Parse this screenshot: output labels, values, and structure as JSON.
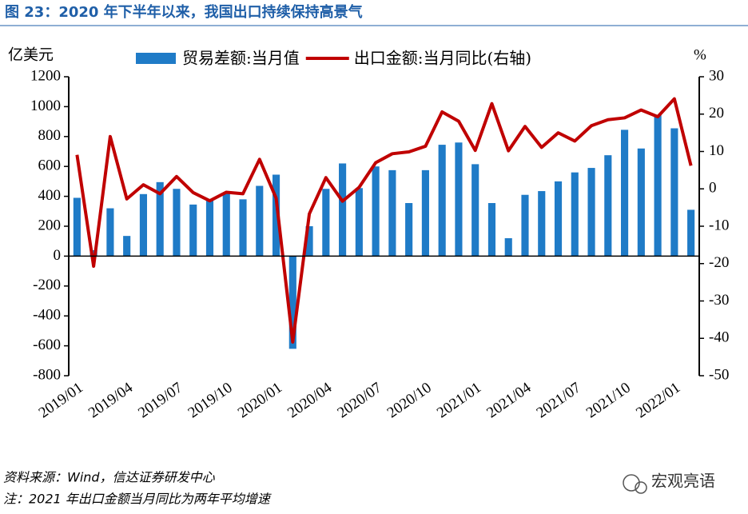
{
  "chart_data": {
    "type": "combo",
    "title": "图 23：2020 年下半年以来，我国出口持续保持高景气",
    "y_label": "亿美元",
    "y2_label": "%",
    "categories": [
      "2019/01",
      null,
      null,
      "2019/04",
      null,
      null,
      "2019/07",
      null,
      null,
      "2019/10",
      null,
      null,
      "2020/01",
      null,
      null,
      "2020/04",
      null,
      null,
      "2020/07",
      null,
      null,
      "2020/10",
      null,
      null,
      "2021/01",
      null,
      null,
      "2021/04",
      null,
      null,
      "2021/07",
      null,
      null,
      "2021/10",
      null,
      null,
      "2022/01",
      null
    ],
    "series": [
      {
        "name": "贸易差额:当月值",
        "type": "bar",
        "color": "#1f7bc7",
        "values": [
          390,
          40,
          320,
          135,
          415,
          495,
          450,
          345,
          375,
          425,
          380,
          470,
          545,
          -620,
          200,
          450,
          620,
          455,
          600,
          575,
          355,
          575,
          745,
          760,
          615,
          355,
          120,
          410,
          435,
          500,
          560,
          590,
          675,
          845,
          720,
          945,
          855,
          310
        ]
      },
      {
        "name": "出口金额:当月同比(右轴)",
        "type": "line",
        "axis": "y2",
        "color": "#c00000",
        "values": [
          9.1,
          -20.7,
          14,
          -2.7,
          1.1,
          -1.3,
          3.3,
          -1,
          -3.2,
          -0.9,
          -1.3,
          7.9,
          -2.5,
          -41,
          -6.7,
          3,
          -3.3,
          0.4,
          7,
          9.4,
          9.9,
          11.4,
          20.6,
          18.1,
          10.3,
          22.8,
          10.2,
          16.7,
          11.1,
          15,
          12.8,
          16.9,
          18.5,
          19,
          21.1,
          19.3,
          24.1,
          6.2
        ]
      }
    ],
    "ylim": [
      -800,
      1200
    ],
    "yticks": [
      -800,
      -600,
      -400,
      -200,
      0,
      200,
      400,
      600,
      800,
      1000,
      1200
    ],
    "y2lim": [
      -50,
      30
    ],
    "y2ticks": [
      -50,
      -40,
      -30,
      -20,
      -10,
      0,
      10,
      20,
      30
    ],
    "legend": "top",
    "source": "资料来源：Wind，信达证券研发中心",
    "note": "注：2021 年出口金额当月同比为两年平均增速",
    "watermark": "宏观亮语"
  }
}
